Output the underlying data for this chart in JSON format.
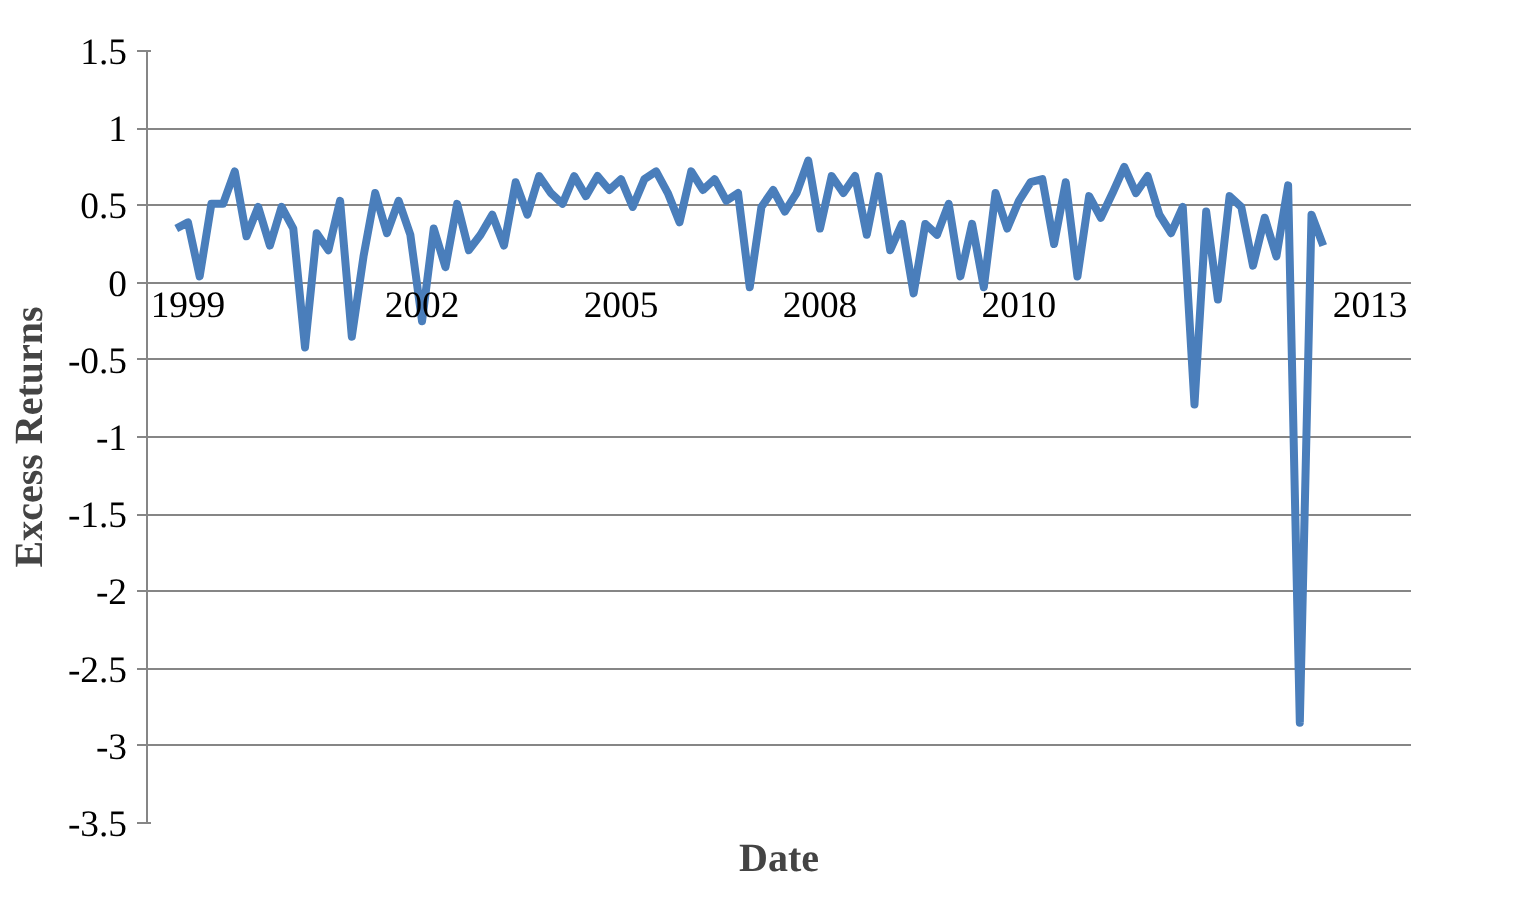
{
  "chart_data": {
    "type": "line",
    "xlabel": "Date",
    "ylabel": "Excess Returns",
    "categories": [
      null,
      "1999",
      null,
      null,
      null,
      null,
      null,
      null,
      null,
      null,
      null,
      null,
      null,
      null,
      null,
      null,
      null,
      null,
      null,
      null,
      null,
      "2002",
      null,
      null,
      null,
      null,
      null,
      null,
      null,
      null,
      null,
      null,
      null,
      null,
      null,
      null,
      null,
      null,
      "2005",
      null,
      null,
      null,
      null,
      null,
      null,
      null,
      null,
      null,
      null,
      null,
      null,
      null,
      null,
      null,
      null,
      "2008",
      null,
      null,
      null,
      null,
      null,
      null,
      null,
      null,
      null,
      null,
      null,
      null,
      null,
      null,
      null,
      null,
      "2010",
      null,
      null,
      null,
      null,
      null,
      null,
      null,
      null,
      null,
      null,
      null,
      null,
      null,
      null,
      null,
      null,
      null,
      null,
      null,
      null,
      null,
      null,
      null,
      null,
      null,
      null,
      null,
      null,
      null,
      "2013"
    ],
    "ylim": [
      -3.5,
      1.5
    ],
    "yticks": [
      -3.5,
      -3,
      -2.5,
      -2,
      -1.5,
      -1,
      -0.5,
      0,
      0.5,
      1,
      1.5
    ],
    "grid": "y",
    "marker": "none",
    "line_style": "solid",
    "series": [
      {
        "color": "#4a7ebb",
        "values": [
          0.35,
          0.39,
          0.04,
          0.51,
          0.51,
          0.72,
          0.3,
          0.49,
          0.24,
          0.49,
          0.35,
          -0.42,
          0.32,
          0.21,
          0.53,
          -0.35,
          0.17,
          0.58,
          0.32,
          0.53,
          0.31,
          -0.25,
          0.35,
          0.1,
          0.51,
          0.21,
          0.31,
          0.44,
          0.24,
          0.65,
          0.44,
          0.69,
          0.58,
          0.51,
          0.69,
          0.56,
          0.69,
          0.6,
          0.67,
          0.49,
          0.67,
          0.72,
          0.58,
          0.39,
          0.72,
          0.6,
          0.67,
          0.53,
          0.58,
          -0.03,
          0.49,
          0.6,
          0.46,
          0.58,
          0.79,
          0.35,
          0.69,
          0.58,
          0.69,
          0.31,
          0.69,
          0.21,
          0.38,
          -0.07,
          0.38,
          0.31,
          0.51,
          0.04,
          0.38,
          -0.03,
          0.58,
          0.35,
          0.53,
          0.65,
          0.67,
          0.25,
          0.65,
          0.04,
          0.56,
          0.42,
          0.58,
          0.75,
          0.58,
          0.69,
          0.44,
          0.32,
          0.49,
          -0.79,
          0.46,
          -0.11,
          0.56,
          0.49,
          0.11,
          0.42,
          0.17,
          0.63,
          -2.85,
          0.44,
          0.24,
          null,
          null,
          null,
          null
        ]
      }
    ]
  }
}
